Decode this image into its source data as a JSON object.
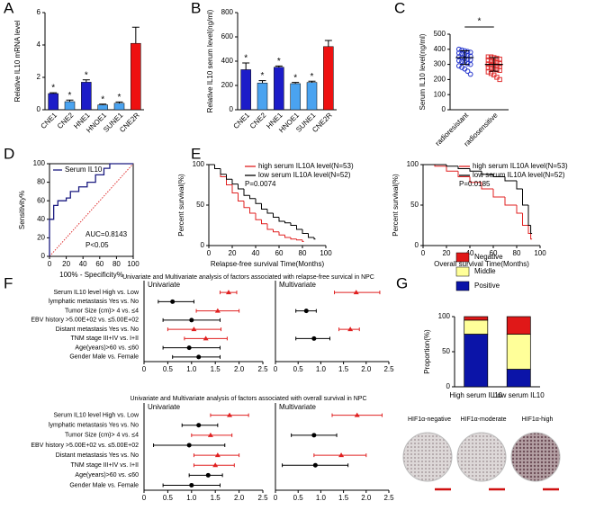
{
  "panel_labels": [
    "A",
    "B",
    "C",
    "D",
    "E",
    "F",
    "G"
  ],
  "images": [
    "HIF1α-negative",
    "HIF1α-moderate",
    "HIF1α-high"
  ],
  "chart_data": [
    {
      "type": "bar",
      "ylabel": "Relative IL10 mRNA level",
      "categories": [
        "CNE1",
        "CNE2",
        "HNE1",
        "HNOE1",
        "SUNE1",
        "CNE2R"
      ],
      "values": [
        1,
        0.5,
        1.7,
        0.3,
        0.4,
        4.1
      ],
      "errors": [
        0.05,
        0.1,
        0.15,
        0.05,
        0.08,
        1
      ],
      "colors": [
        "#1c1cc8",
        "#4aa3f0",
        "#1c1cc8",
        "#4aa3f0",
        "#4aa3f0",
        "#ee1111"
      ],
      "annotations": [
        "*",
        "*",
        "*",
        "*",
        "*",
        null
      ],
      "ylim": [
        0,
        6
      ],
      "yticks": [
        0,
        2,
        4,
        6
      ]
    },
    {
      "type": "bar",
      "ylabel": "Relative IL10 serum level(ng/ml)",
      "categories": [
        "CNE1",
        "CNE2",
        "HNE1",
        "HNOE1",
        "SUNE1",
        "CNE2R"
      ],
      "values": [
        330,
        220,
        350,
        215,
        225,
        520
      ],
      "errors": [
        55,
        20,
        10,
        10,
        10,
        50
      ],
      "colors": [
        "#1c1cc8",
        "#4aa3f0",
        "#1c1cc8",
        "#4aa3f0",
        "#4aa3f0",
        "#ee1111"
      ],
      "annotations": [
        "*",
        "*",
        "*",
        "*",
        "*",
        null
      ],
      "ylim": [
        0,
        800
      ],
      "yticks": [
        0,
        200,
        400,
        600,
        800
      ]
    },
    {
      "type": "dot",
      "ylabel": "Serum IL10 level(ng/ml)",
      "categories": [
        "radioresistant",
        "radiosensitive"
      ],
      "points": [
        [
          400,
          395,
          390,
          385,
          380,
          375,
          370,
          365,
          360,
          355,
          350,
          345,
          340,
          335,
          330,
          325,
          320,
          315,
          305,
          300,
          290,
          280,
          270,
          255,
          235
        ],
        [
          350,
          350,
          345,
          340,
          335,
          330,
          320,
          315,
          310,
          305,
          300,
          300,
          295,
          290,
          285,
          280,
          275,
          270,
          265,
          260,
          250,
          240,
          230,
          215,
          200
        ]
      ],
      "means": [
        345,
        300
      ],
      "sds": [
        45,
        45
      ],
      "colors": [
        "#2233cc",
        "#e03030"
      ],
      "markers": [
        "circle",
        "square"
      ],
      "annotation": "*",
      "ylim": [
        0,
        500
      ],
      "yticks": [
        0,
        100,
        200,
        300,
        400,
        500
      ]
    },
    {
      "type": "line",
      "xlabel": "100% - Specificity%",
      "ylabel": "Sensitivity%",
      "series": [
        {
          "name": "Serum IL10",
          "color": "#1a1a80",
          "x": [
            0,
            0,
            5,
            5,
            10,
            10,
            20,
            20,
            25,
            25,
            35,
            35,
            45,
            45,
            55,
            55,
            65,
            65,
            72,
            72,
            100
          ],
          "values": [
            0,
            40,
            40,
            55,
            55,
            60,
            60,
            63,
            63,
            70,
            70,
            75,
            75,
            80,
            80,
            88,
            88,
            95,
            95,
            100,
            100
          ]
        }
      ],
      "reference_line": true,
      "annotations": [
        "AUC=0.8143",
        "P<0.05"
      ],
      "xlim": [
        0,
        100
      ],
      "ylim": [
        0,
        100
      ],
      "xticks": [
        0,
        20,
        40,
        60,
        80,
        100
      ],
      "yticks": [
        0,
        20,
        40,
        60,
        80,
        100
      ]
    },
    {
      "type": "step",
      "xlabel": "Relapse-free survival Time(Months)",
      "ylabel": "Percent survival(%)",
      "series": [
        {
          "name": "high serum IL10A level(N=53)",
          "color": "#e02020",
          "x": [
            0,
            5,
            10,
            15,
            20,
            25,
            30,
            35,
            40,
            45,
            50,
            55,
            60,
            65,
            70,
            75,
            80
          ],
          "values": [
            100,
            95,
            85,
            75,
            65,
            55,
            47,
            40,
            32,
            27,
            20,
            17,
            13,
            10,
            8,
            7,
            5
          ]
        },
        {
          "name": "low serum IL10A level(N=52)",
          "color": "#000000",
          "x": [
            0,
            5,
            10,
            15,
            20,
            25,
            30,
            35,
            40,
            45,
            50,
            55,
            60,
            65,
            70,
            75,
            80,
            85,
            90
          ],
          "values": [
            100,
            95,
            88,
            82,
            76,
            70,
            62,
            58,
            52,
            45,
            40,
            35,
            30,
            28,
            25,
            20,
            15,
            10,
            8
          ]
        }
      ],
      "annotation": "P=0.0074",
      "xlim": [
        0,
        100
      ],
      "ylim": [
        0,
        100
      ],
      "xticks": [
        0,
        20,
        40,
        60,
        80,
        100
      ],
      "yticks": [
        0,
        50,
        100
      ]
    },
    {
      "type": "step",
      "xlabel": "Overall survival Time(Months)",
      "ylabel": "Percent survival(%)",
      "series": [
        {
          "name": "high serum IL10A level(N=53)",
          "color": "#e02020",
          "x": [
            0,
            10,
            20,
            30,
            40,
            50,
            60,
            70,
            80,
            85,
            90,
            92
          ],
          "values": [
            100,
            98,
            92,
            85,
            78,
            70,
            60,
            50,
            40,
            25,
            15,
            8
          ]
        },
        {
          "name": "low serum IL10A level(N=52)",
          "color": "#000000",
          "x": [
            0,
            10,
            20,
            30,
            40,
            50,
            60,
            70,
            80,
            85,
            90,
            92
          ],
          "values": [
            100,
            100,
            98,
            95,
            92,
            88,
            85,
            80,
            70,
            50,
            25,
            15
          ]
        }
      ],
      "annotation": "P=0.0185",
      "xlim": [
        0,
        100
      ],
      "ylim": [
        0,
        100
      ],
      "xticks": [
        0,
        20,
        40,
        60,
        80,
        100
      ],
      "yticks": [
        0,
        50,
        100
      ]
    },
    {
      "type": "forest",
      "title": "Univariate and Multivariate analysis of factors associated with relapse-free survical in NPC",
      "categories": [
        "Serum IL10 level High vs. Low",
        "lymphatic metastasis Yes vs. No",
        "Tumor Size (cm)> 4 vs. ≤4",
        "EBV history >5.00E+02 vs. ≤5.00E+02",
        "Distant metastasis Yes vs. No",
        "TNM stage III+IV vs. I+II",
        "Age(years)>60 vs. ≤60",
        "Gender Male vs. Female"
      ],
      "panels": [
        {
          "name": "Univariate",
          "values": [
            1.78,
            0.6,
            1.55,
            1,
            1.05,
            1.3,
            0.95,
            1.15
          ],
          "lower": [
            1.6,
            0.3,
            1.1,
            0.4,
            0.5,
            0.85,
            0.4,
            0.6
          ],
          "upper": [
            1.95,
            1.05,
            2,
            1.6,
            1.62,
            1.75,
            1.6,
            1.6
          ],
          "colors": [
            "#e02020",
            "#000000",
            "#e02020",
            "#000000",
            "#e02020",
            "#e02020",
            "#000000",
            "#000000"
          ]
        },
        {
          "name": "Multivariate",
          "values": [
            1.78,
            null,
            0.68,
            null,
            1.65,
            0.85,
            null,
            null
          ],
          "lower": [
            1.3,
            null,
            0.45,
            null,
            1.4,
            0.45,
            null,
            null
          ],
          "upper": [
            2.3,
            null,
            0.9,
            null,
            1.85,
            1.2,
            null,
            null
          ],
          "colors": [
            "#e02020",
            null,
            "#000000",
            null,
            "#e02020",
            "#000000",
            null,
            null
          ]
        }
      ],
      "xlim": [
        0,
        2.5
      ],
      "xticks": [
        0,
        0.5,
        {
          "value": 1,
          "label": "1.0"
        },
        1.5,
        {
          "value": 2,
          "label": "2.0"
        },
        2.5
      ]
    },
    {
      "type": "forest",
      "title": "Univariate and Multivariate analysis of factors associated with overall survival in NPC",
      "categories": [
        "Serum IL10 level High vs. Low",
        "lymphatic metastasis Yes vs. No",
        "Tumor Size (cm)> 4 vs. ≤4",
        "EBV history >5.00E+02 vs. ≤5.00E+02",
        "Distant metastasis Yes vs. No",
        "TNM stage III+IV vs. I+II",
        "Age(years)>60 vs. ≤60",
        "Gender Male vs. Female"
      ],
      "panels": [
        {
          "name": "Univariate",
          "values": [
            1.8,
            1.15,
            1.4,
            0.95,
            1.55,
            1.5,
            1.35,
            1
          ],
          "lower": [
            1.4,
            0.8,
            1,
            0.2,
            1.05,
            1.05,
            0.95,
            0.4
          ],
          "upper": [
            2.2,
            1.55,
            1.85,
            1.7,
            2,
            1.9,
            1.65,
            1.6
          ],
          "colors": [
            "#e02020",
            "#000000",
            "#e02020",
            "#000000",
            "#e02020",
            "#e02020",
            "#000000",
            "#000000"
          ]
        },
        {
          "name": "Multivariate",
          "values": [
            1.8,
            null,
            0.85,
            null,
            1.45,
            0.88,
            null,
            null
          ],
          "lower": [
            1.25,
            null,
            0.35,
            null,
            0.85,
            0.15,
            null,
            null
          ],
          "upper": [
            2.35,
            null,
            1.35,
            null,
            2,
            1.6,
            null,
            null
          ],
          "colors": [
            "#e02020",
            null,
            "#000000",
            null,
            "#e02020",
            "#000000",
            null,
            null
          ]
        }
      ],
      "xlim": [
        0,
        2.5
      ],
      "xticks": [
        0,
        0.5,
        {
          "value": 1,
          "label": "1.0"
        },
        1.5,
        {
          "value": 2,
          "label": "2.0"
        },
        2.5
      ]
    },
    {
      "type": "stacked_bar",
      "ylabel": "Proportion(%)",
      "categories": [
        "High serum IL10",
        "Low serum IL10"
      ],
      "series": [
        {
          "name": "Positive",
          "color": "#0b14a8",
          "values": [
            75,
            25
          ]
        },
        {
          "name": "Middle",
          "color": "#ffff99",
          "values": [
            20,
            50
          ]
        },
        {
          "name": "Negative",
          "color": "#e01818",
          "values": [
            5,
            25
          ]
        }
      ],
      "ylim": [
        0,
        100
      ],
      "yticks": [
        0,
        50,
        100
      ]
    }
  ]
}
